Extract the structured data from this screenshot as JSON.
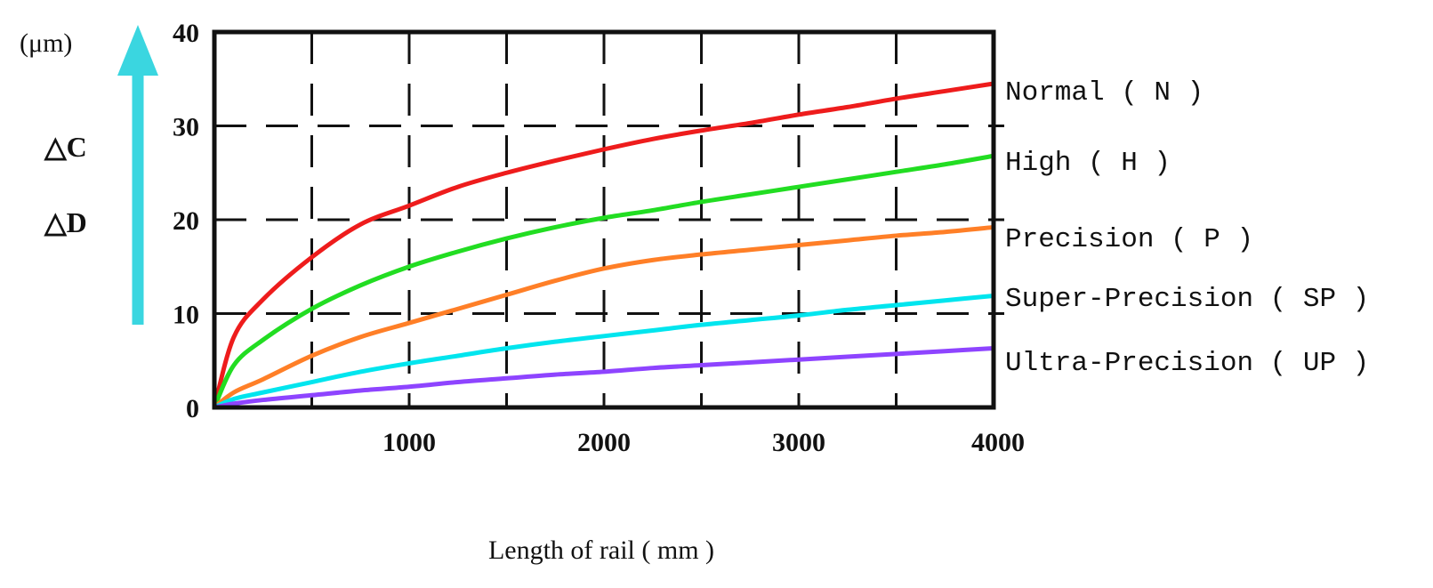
{
  "chart_data": {
    "type": "line",
    "ylabel_unit": "(μm)",
    "ylabel_quantities": [
      "△C",
      "△D"
    ],
    "xlabel": "Length of rail ( mm )",
    "xlim": [
      0,
      4000
    ],
    "ylim": [
      0,
      40
    ],
    "x_ticks": [
      "1000",
      "2000",
      "3000",
      "4000"
    ],
    "y_ticks": [
      "0",
      "10",
      "20",
      "30",
      "40"
    ],
    "grid": true,
    "legend_placement": "right",
    "x": [
      0,
      100,
      250,
      500,
      750,
      1000,
      1250,
      1500,
      1750,
      2000,
      2250,
      2500,
      2750,
      3000,
      3250,
      3500,
      3750,
      4000
    ],
    "series": [
      {
        "name": "Normal ( N )",
        "color": "#ee1c1c",
        "values": [
          0,
          7.5,
          11.5,
          16,
          19.5,
          21.5,
          23.5,
          25,
          26.3,
          27.5,
          28.6,
          29.5,
          30.3,
          31.2,
          32,
          32.9,
          33.7,
          34.5
        ]
      },
      {
        "name": "High ( H )",
        "color": "#22dd22",
        "values": [
          0,
          4.5,
          7.2,
          10.5,
          13,
          15,
          16.6,
          18,
          19.2,
          20.2,
          21,
          21.9,
          22.7,
          23.5,
          24.3,
          25.1,
          25.9,
          26.8
        ]
      },
      {
        "name": "Precision ( P )",
        "color": "#ff7f27",
        "values": [
          0,
          1.6,
          3,
          5.5,
          7.5,
          9,
          10.5,
          12,
          13.5,
          14.8,
          15.7,
          16.3,
          16.8,
          17.3,
          17.8,
          18.3,
          18.7,
          19.2
        ]
      },
      {
        "name": "Super-Precision ( SP )",
        "color": "#00e5ee",
        "values": [
          0,
          0.9,
          1.6,
          2.7,
          3.8,
          4.7,
          5.5,
          6.3,
          7,
          7.6,
          8.2,
          8.8,
          9.3,
          9.8,
          10.4,
          10.9,
          11.4,
          11.9
        ]
      },
      {
        "name": "Ultra-Precision ( UP )",
        "color": "#8e44ff",
        "values": [
          0,
          0.4,
          0.8,
          1.3,
          1.8,
          2.2,
          2.7,
          3.1,
          3.5,
          3.8,
          4.2,
          4.5,
          4.8,
          5.1,
          5.4,
          5.7,
          6,
          6.3
        ]
      }
    ],
    "colors": {
      "axis_arrow": "#3ad6e0",
      "frame": "#111111",
      "grid": "#111111"
    }
  }
}
